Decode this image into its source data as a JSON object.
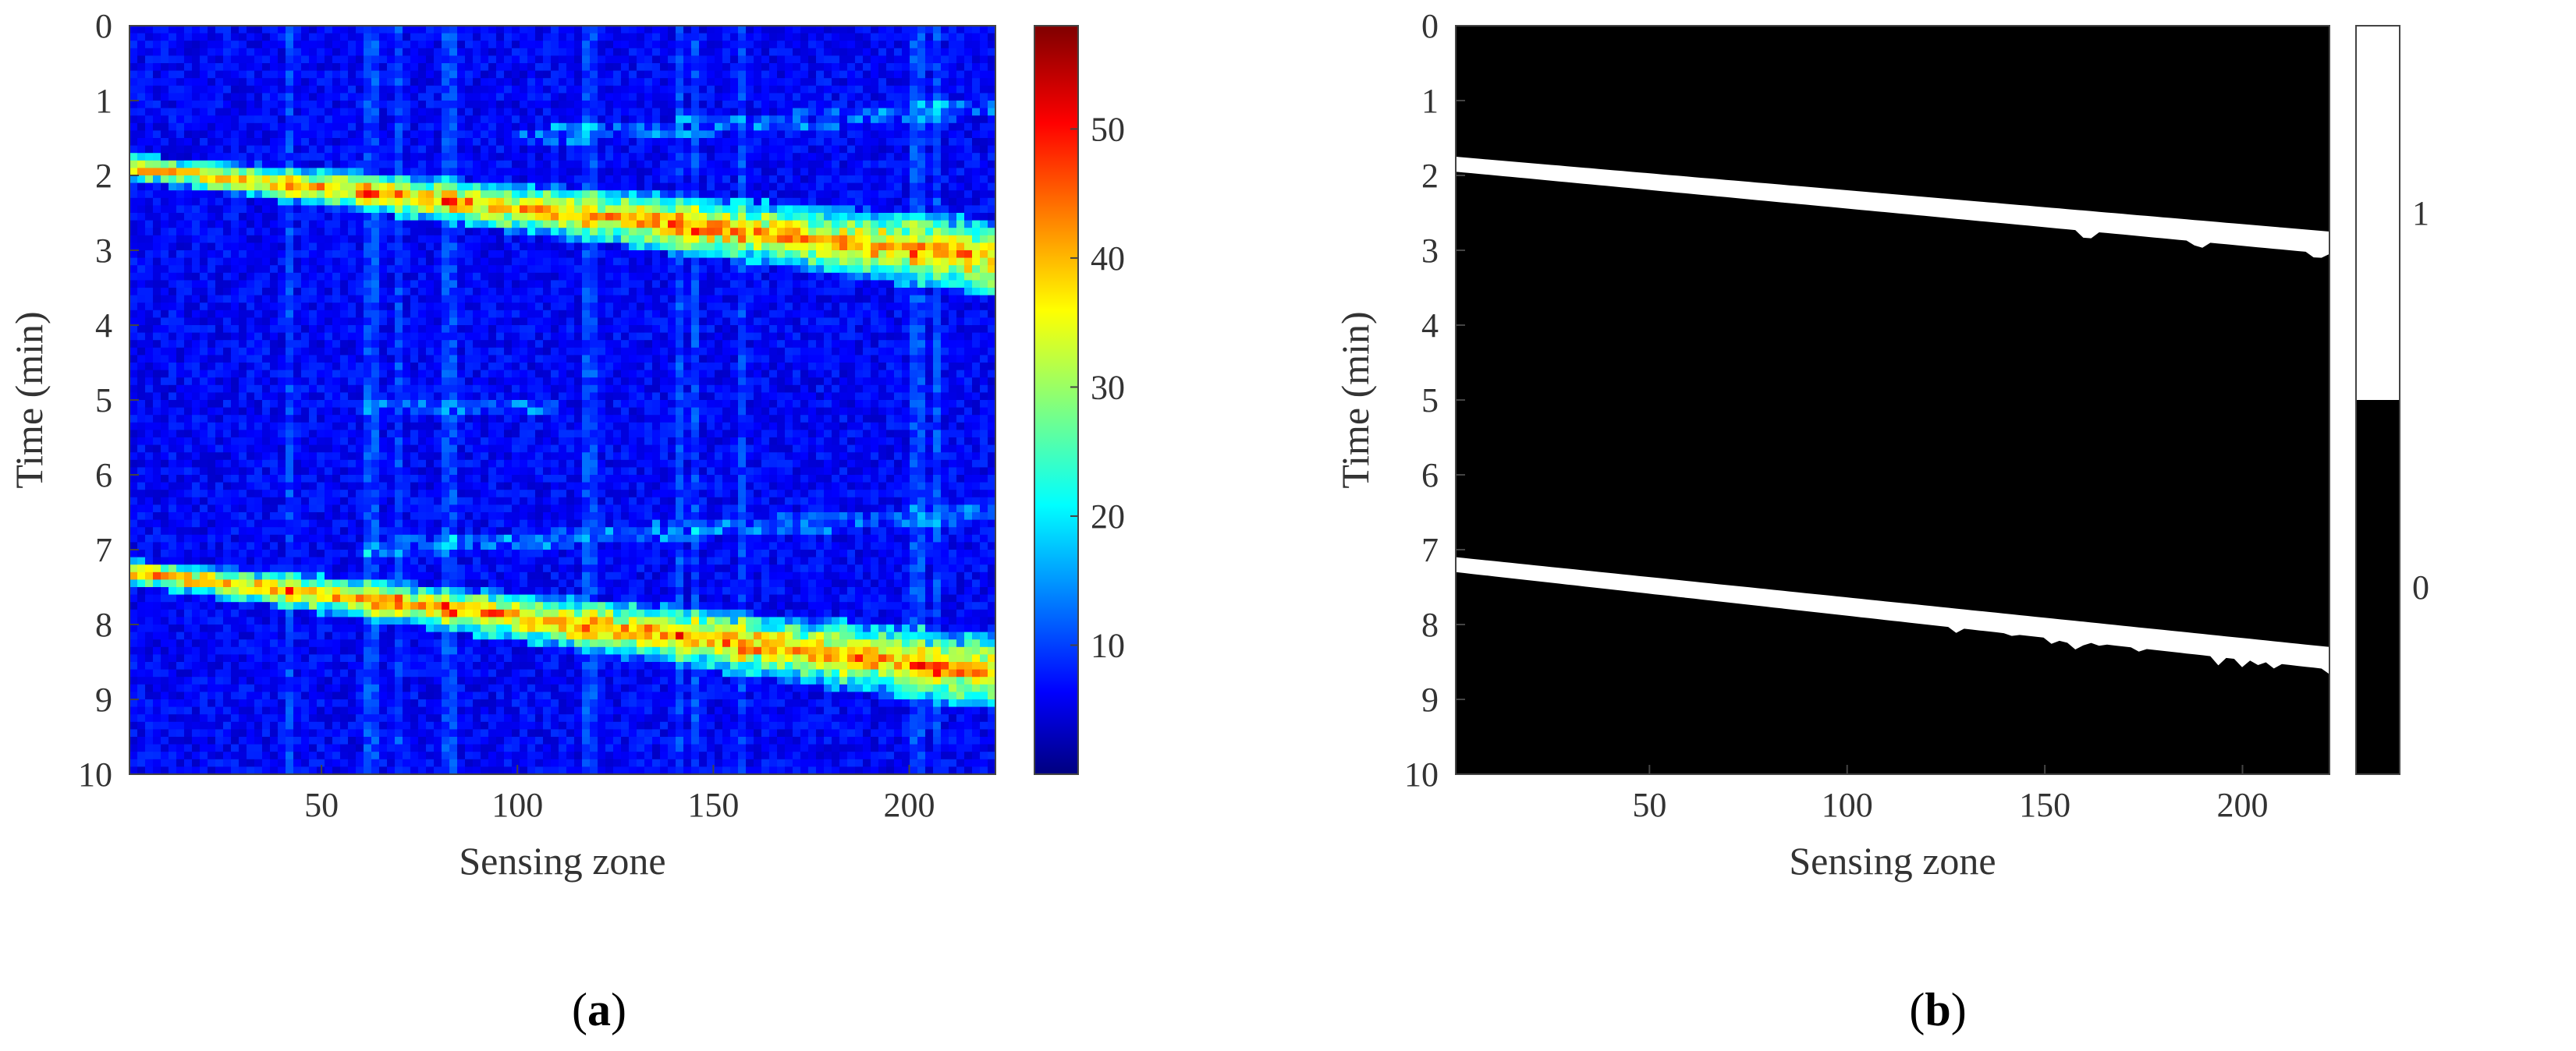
{
  "chart_data": [
    {
      "type": "heatmap",
      "panel_label_prefix": "(",
      "panel_label_letter": "a",
      "panel_label_suffix": ")",
      "xlabel": "Sensing zone",
      "ylabel": "Time (min)",
      "xlim": [
        1,
        222
      ],
      "ylim": [
        0,
        10
      ],
      "y_reversed": true,
      "xticks": [
        50,
        100,
        150,
        200
      ],
      "yticks": [
        0,
        1,
        2,
        3,
        4,
        5,
        6,
        7,
        8,
        9,
        10
      ],
      "colormap": "jet",
      "colorbar": {
        "range": [
          0,
          58
        ],
        "ticks": [
          10,
          20,
          30,
          40,
          50
        ]
      },
      "bands": [
        {
          "x_start": 1,
          "x_end": 222,
          "t_start": 1.75,
          "t_end": 2.95,
          "peak": 55
        },
        {
          "x_start": 1,
          "x_end": 222,
          "t_start": 7.15,
          "t_end": 8.5,
          "peak": 55
        }
      ],
      "faint_traces": [
        {
          "x_start": 100,
          "x_end": 222,
          "t_start": 1.5,
          "t_end": 1.1,
          "level": 18
        },
        {
          "x_start": 60,
          "x_end": 222,
          "t_start": 7.0,
          "t_end": 6.5,
          "level": 16
        },
        {
          "x_start": 60,
          "x_end": 110,
          "t_start": 5.1,
          "t_end": 5.1,
          "level": 14
        }
      ],
      "background_level": 7
    },
    {
      "type": "heatmap",
      "panel_label_prefix": "(",
      "panel_label_letter": "b",
      "panel_label_suffix": ")",
      "xlabel": "Sensing zone",
      "ylabel": "Time (min)",
      "xlim": [
        1,
        222
      ],
      "ylim": [
        0,
        10
      ],
      "y_reversed": true,
      "xticks": [
        50,
        100,
        150,
        200
      ],
      "yticks": [
        0,
        1,
        2,
        3,
        4,
        5,
        6,
        7,
        8,
        9,
        10
      ],
      "colormap": "binary",
      "colorbar": {
        "ticks": [
          0,
          1
        ],
        "colors": [
          "#000000",
          "#ffffff"
        ]
      },
      "mask_bands": [
        {
          "x_start": 1,
          "x_end": 222,
          "top_start": 1.75,
          "top_end": 2.75,
          "bottom_start": 1.95,
          "bottom_end": 3.05
        },
        {
          "x_start": 1,
          "x_end": 222,
          "top_start": 7.1,
          "top_end": 8.3,
          "bottom_start": 7.3,
          "bottom_end": 8.6
        }
      ]
    }
  ]
}
